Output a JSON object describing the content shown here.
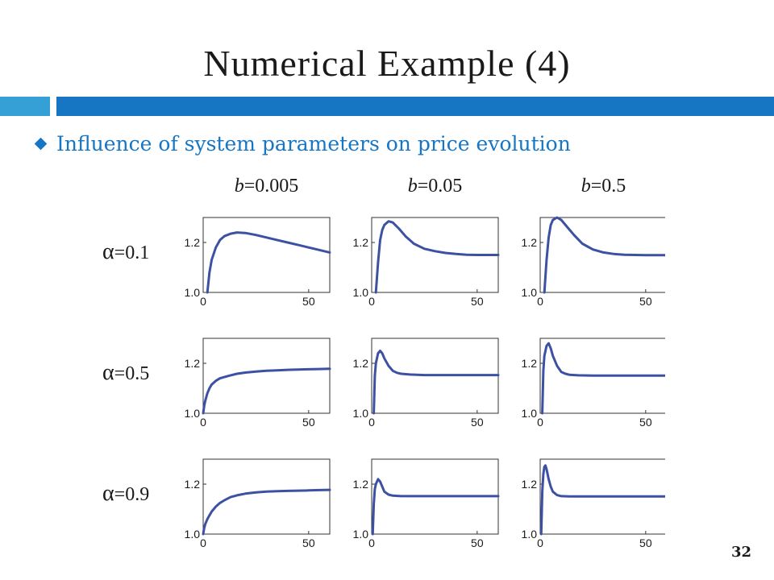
{
  "slide": {
    "title": "Numerical Example (4)",
    "bullet": "Influence of system parameters on price evolution",
    "page_number": "32",
    "accent_light": "#35a0d6",
    "accent_dark": "#1676c4"
  },
  "chart_data": {
    "type": "line",
    "layout": "small-multiples-3x3",
    "line_color": "#3d51a3",
    "col_labels": [
      {
        "sym": "b",
        "val": "=0.005"
      },
      {
        "sym": "b",
        "val": "=0.05"
      },
      {
        "sym": "b",
        "val": "=0.5"
      }
    ],
    "row_labels": [
      {
        "sym": "α",
        "val": "=0.1"
      },
      {
        "sym": "α",
        "val": "=0.5"
      },
      {
        "sym": "α",
        "val": "=0.9"
      }
    ],
    "xlim": [
      0,
      60
    ],
    "ylim": [
      1.0,
      1.3
    ],
    "xticks": [
      {
        "v": 0,
        "label": "0"
      },
      {
        "v": 50,
        "label": "50"
      }
    ],
    "yticks": [
      {
        "v": 1.0,
        "label": "1.0"
      },
      {
        "v": 1.2,
        "label": "1.2"
      }
    ],
    "panels": [
      [
        {
          "x": [
            2,
            3,
            4,
            6,
            8,
            10,
            13,
            16,
            20,
            25,
            30,
            35,
            40,
            45,
            50,
            55,
            60
          ],
          "y": [
            1.0,
            1.08,
            1.13,
            1.18,
            1.21,
            1.225,
            1.235,
            1.24,
            1.238,
            1.23,
            1.22,
            1.21,
            1.2,
            1.19,
            1.18,
            1.17,
            1.16
          ]
        },
        {
          "x": [
            2,
            3,
            4,
            5,
            6,
            8,
            10,
            13,
            16,
            20,
            25,
            30,
            35,
            40,
            45,
            50,
            55,
            60
          ],
          "y": [
            1.0,
            1.12,
            1.21,
            1.25,
            1.27,
            1.285,
            1.28,
            1.255,
            1.225,
            1.195,
            1.175,
            1.165,
            1.158,
            1.154,
            1.151,
            1.15,
            1.15,
            1.15
          ]
        },
        {
          "x": [
            2,
            3,
            4,
            5,
            6,
            8,
            10,
            13,
            16,
            20,
            25,
            30,
            35,
            40,
            45,
            50,
            55,
            60
          ],
          "y": [
            1.0,
            1.13,
            1.22,
            1.27,
            1.29,
            1.3,
            1.29,
            1.26,
            1.23,
            1.195,
            1.172,
            1.16,
            1.154,
            1.151,
            1.15,
            1.149,
            1.149,
            1.149
          ]
        }
      ],
      [
        {
          "x": [
            0,
            0.5,
            1,
            2,
            3,
            4,
            6,
            8,
            10,
            13,
            16,
            20,
            25,
            30,
            35,
            40,
            45,
            50,
            55,
            60
          ],
          "y": [
            1.0,
            1.03,
            1.05,
            1.08,
            1.1,
            1.115,
            1.13,
            1.14,
            1.145,
            1.152,
            1.158,
            1.163,
            1.167,
            1.17,
            1.172,
            1.174,
            1.175,
            1.176,
            1.177,
            1.178
          ]
        },
        {
          "x": [
            1,
            1.5,
            2,
            3,
            4,
            5,
            6,
            8,
            10,
            12,
            14,
            18,
            25,
            35,
            45,
            60
          ],
          "y": [
            1.0,
            1.15,
            1.2,
            1.24,
            1.25,
            1.24,
            1.22,
            1.19,
            1.17,
            1.162,
            1.158,
            1.155,
            1.153,
            1.153,
            1.153,
            1.153
          ]
        },
        {
          "x": [
            1,
            1.5,
            2,
            3,
            4,
            5,
            6,
            8,
            10,
            12,
            14,
            18,
            25,
            35,
            45,
            60
          ],
          "y": [
            1.0,
            1.17,
            1.23,
            1.27,
            1.28,
            1.26,
            1.23,
            1.19,
            1.165,
            1.158,
            1.154,
            1.152,
            1.151,
            1.151,
            1.151,
            1.151
          ]
        }
      ],
      [
        {
          "x": [
            0,
            0.5,
            1,
            2,
            3,
            4,
            6,
            8,
            10,
            13,
            16,
            20,
            25,
            30,
            35,
            40,
            45,
            50,
            55,
            60
          ],
          "y": [
            1.0,
            1.025,
            1.04,
            1.06,
            1.075,
            1.09,
            1.11,
            1.125,
            1.135,
            1.148,
            1.155,
            1.162,
            1.167,
            1.17,
            1.172,
            1.173,
            1.174,
            1.175,
            1.176,
            1.177
          ]
        },
        {
          "x": [
            0.5,
            1,
            1.5,
            2,
            3,
            4,
            5,
            6,
            8,
            10,
            14,
            20,
            30,
            45,
            60
          ],
          "y": [
            1.0,
            1.12,
            1.18,
            1.2,
            1.22,
            1.21,
            1.19,
            1.17,
            1.158,
            1.154,
            1.152,
            1.152,
            1.152,
            1.152,
            1.152
          ]
        },
        {
          "x": [
            0.5,
            1,
            1.5,
            2,
            2.5,
            3,
            4,
            5,
            6,
            8,
            10,
            14,
            20,
            30,
            45,
            60
          ],
          "y": [
            1.0,
            1.17,
            1.24,
            1.27,
            1.275,
            1.26,
            1.22,
            1.19,
            1.17,
            1.156,
            1.152,
            1.151,
            1.151,
            1.151,
            1.151,
            1.151
          ]
        }
      ]
    ]
  }
}
